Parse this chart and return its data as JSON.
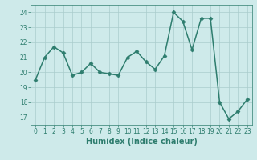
{
  "x": [
    0,
    1,
    2,
    3,
    4,
    5,
    6,
    7,
    8,
    9,
    10,
    11,
    12,
    13,
    14,
    15,
    16,
    17,
    18,
    19,
    20,
    21,
    22,
    23
  ],
  "y": [
    19.5,
    21.0,
    21.7,
    21.3,
    19.8,
    20.0,
    20.6,
    20.0,
    19.9,
    19.8,
    21.0,
    21.4,
    20.7,
    20.2,
    21.1,
    24.0,
    23.4,
    21.5,
    23.6,
    23.6,
    18.0,
    16.9,
    17.4,
    18.2
  ],
  "line_color": "#2e7d6e",
  "marker": "D",
  "marker_size": 2.5,
  "bg_color": "#ceeaea",
  "grid_color": "#aacccc",
  "xlabel": "Humidex (Indice chaleur)",
  "ylim": [
    16.5,
    24.5
  ],
  "xlim": [
    -0.5,
    23.5
  ],
  "yticks": [
    17,
    18,
    19,
    20,
    21,
    22,
    23,
    24
  ],
  "xticks": [
    0,
    1,
    2,
    3,
    4,
    5,
    6,
    7,
    8,
    9,
    10,
    11,
    12,
    13,
    14,
    15,
    16,
    17,
    18,
    19,
    20,
    21,
    22,
    23
  ],
  "tick_color": "#2e7d6e",
  "label_color": "#2e7d6e",
  "tick_fontsize": 5.5,
  "xlabel_fontsize": 7.0,
  "linewidth": 1.1
}
